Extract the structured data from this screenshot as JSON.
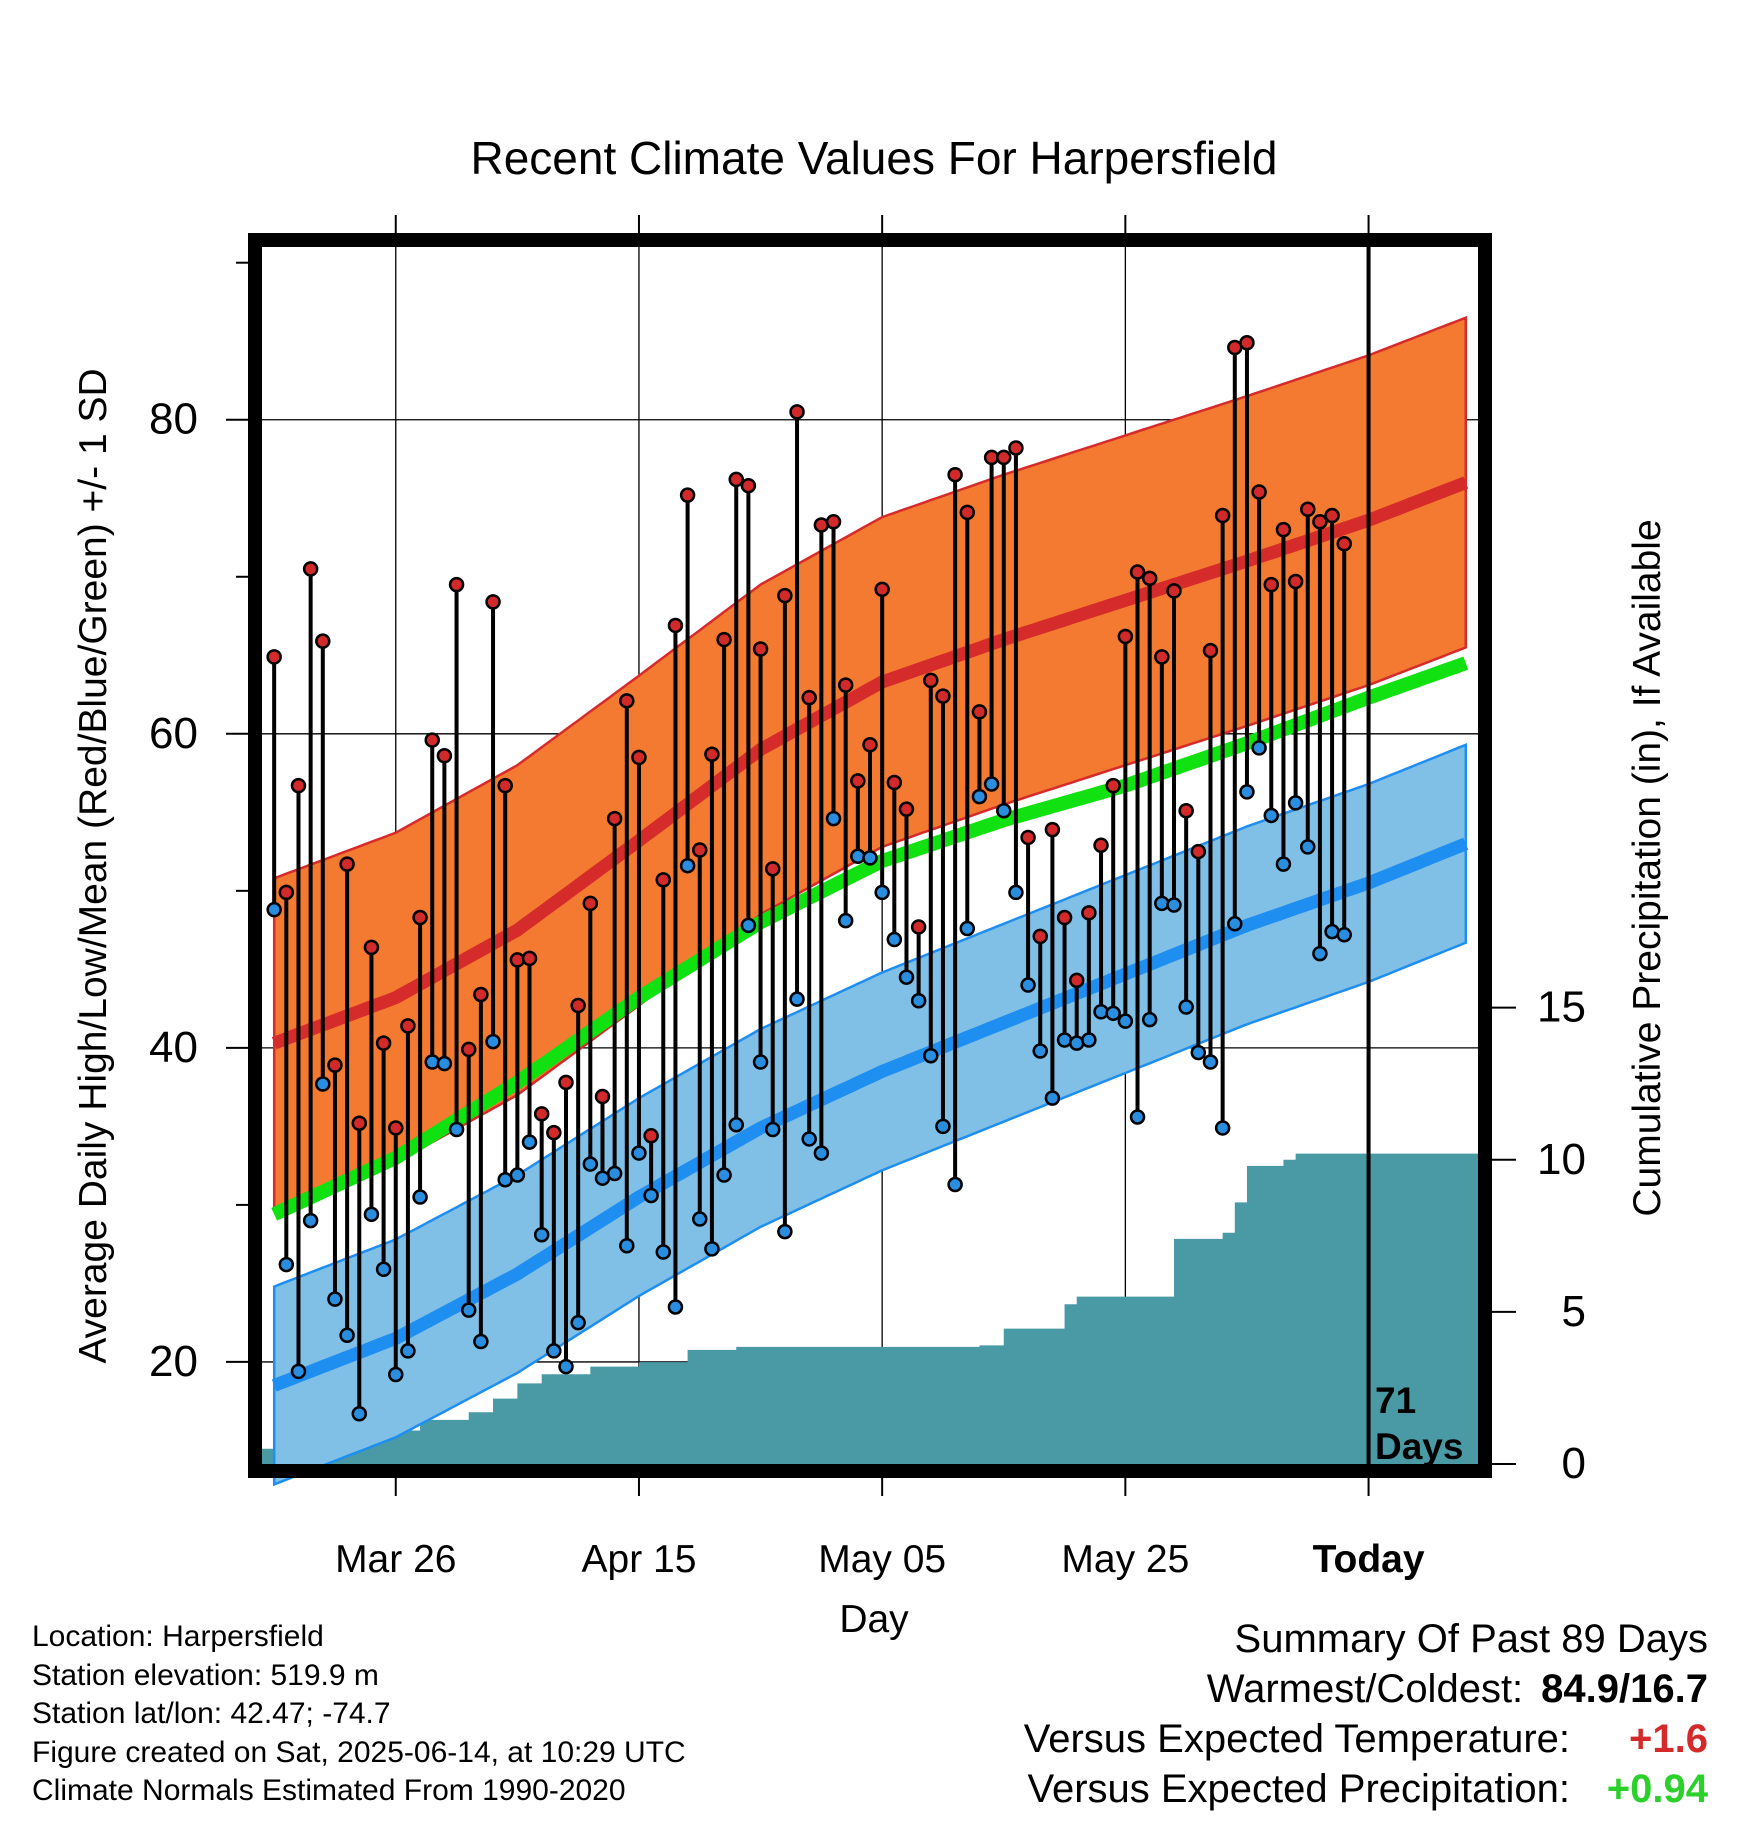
{
  "title": "Recent Climate Values For Harpersfield",
  "ylabel_left": "Average Daily High/Low/Mean (Red/Blue/Green) +/- 1 SD",
  "ylabel_right": "Cumulative Precipitation (in), If Available",
  "xlabel": "Day",
  "days_marker": {
    "number": "71",
    "unit": "Days"
  },
  "meta": {
    "location": "Location: Harpersfield",
    "elevation": "Station elevation: 519.9 m",
    "latlon": "Station lat/lon: 42.47; -74.7",
    "created": "Figure created on Sat, 2025-06-14, at 10:29 UTC",
    "normals": "Climate Normals Estimated From 1990-2020"
  },
  "summary": {
    "heading": "Summary Of Past 89 Days",
    "warmest_coldest_label": "Warmest/Coldest:",
    "warmest_coldest_value": "84.9/16.7",
    "temp_label": "Versus Expected Temperature:",
    "temp_value": "+1.6",
    "temp_color": "#d42a2a",
    "precip_label": "Versus Expected Precipitation:",
    "precip_value": "+0.94",
    "precip_color": "#2bd02b"
  },
  "colors": {
    "high_band": "#f37a30",
    "high_mean": "#d62b2b",
    "low_band": "#80bfe6",
    "low_mean": "#1e8ef0",
    "daily_mean": "#11e011",
    "precip_fill": "#4a9aa5",
    "high_point": "#d22a2a",
    "low_point": "#2a8ee0"
  },
  "chart_data": {
    "type": "line",
    "title": "Recent Climate Values For Harpersfield",
    "xlabel": "Day",
    "ylabel": "Average Daily High/Low/Mean (Red/Blue/Green) +/- 1 SD",
    "y2label": "Cumulative Precipitation (in), If Available",
    "x_tick_labels": [
      "Mar 26",
      "Apr 15",
      "May 05",
      "May 25",
      "Today"
    ],
    "x_tick_days": [
      10,
      30,
      50,
      70,
      90
    ],
    "x_range_days": [
      -1,
      99
    ],
    "today_day": 90,
    "ylim": [
      13.5,
      91
    ],
    "y_ticks": [
      20,
      40,
      60,
      80
    ],
    "y2lim": [
      0,
      40
    ],
    "y2_ticks": [
      0,
      5,
      10,
      15
    ],
    "grid": true,
    "normal_high": [
      [
        0,
        40.3
      ],
      [
        10,
        43.2
      ],
      [
        20,
        47.5
      ],
      [
        30,
        53.2
      ],
      [
        40,
        59.0
      ],
      [
        50,
        63.3
      ],
      [
        60,
        66.0
      ],
      [
        70,
        68.5
      ],
      [
        80,
        71.0
      ],
      [
        90,
        73.6
      ],
      [
        98,
        76.0
      ]
    ],
    "high_sd": 10.5,
    "normal_low": [
      [
        0,
        18.5
      ],
      [
        10,
        21.5
      ],
      [
        20,
        25.6
      ],
      [
        30,
        30.5
      ],
      [
        40,
        34.9
      ],
      [
        50,
        38.5
      ],
      [
        60,
        41.6
      ],
      [
        70,
        44.7
      ],
      [
        80,
        47.8
      ],
      [
        90,
        50.5
      ],
      [
        98,
        53.0
      ]
    ],
    "low_sd": 6.3,
    "normal_mean": [
      [
        0,
        29.4
      ],
      [
        10,
        33.0
      ],
      [
        20,
        37.8
      ],
      [
        30,
        43.2
      ],
      [
        40,
        48.0
      ],
      [
        50,
        51.9
      ],
      [
        60,
        54.5
      ],
      [
        70,
        56.7
      ],
      [
        80,
        59.4
      ],
      [
        90,
        62.3
      ],
      [
        98,
        64.5
      ]
    ],
    "daily": {
      "day": [
        0,
        1,
        2,
        3,
        4,
        5,
        6,
        7,
        8,
        9,
        10,
        11,
        12,
        13,
        14,
        15,
        16,
        17,
        18,
        19,
        20,
        21,
        22,
        23,
        24,
        25,
        26,
        27,
        28,
        29,
        30,
        31,
        32,
        33,
        34,
        35,
        36,
        37,
        38,
        39,
        40,
        41,
        42,
        43,
        44,
        45,
        46,
        47,
        48,
        49,
        50,
        51,
        52,
        53,
        54,
        55,
        56,
        57,
        58,
        59,
        60,
        61,
        62,
        63,
        64,
        65,
        66,
        67,
        68,
        69,
        70,
        71,
        72,
        73,
        74,
        75,
        76,
        77,
        78,
        79,
        80,
        81,
        82,
        83,
        84,
        85,
        86,
        87,
        88
      ],
      "high": [
        64.9,
        49.9,
        56.7,
        70.5,
        65.9,
        38.9,
        51.7,
        35.2,
        46.4,
        40.3,
        34.9,
        41.4,
        48.3,
        59.6,
        58.6,
        69.5,
        39.9,
        43.4,
        68.4,
        56.7,
        45.6,
        45.7,
        35.8,
        34.6,
        37.8,
        42.7,
        49.2,
        36.9,
        54.6,
        62.1,
        58.5,
        34.4,
        50.7,
        66.9,
        75.2,
        52.6,
        58.7,
        66.0,
        76.2,
        75.8,
        65.4,
        51.4,
        68.8,
        80.5,
        62.3,
        73.3,
        73.5,
        63.1,
        57.0,
        59.3,
        69.2,
        56.9,
        55.2,
        47.7,
        63.4,
        62.4,
        76.5,
        74.1,
        61.4,
        77.6,
        77.6,
        78.2,
        53.4,
        47.1,
        53.9,
        48.3,
        44.3,
        48.6,
        52.9,
        56.7,
        66.2,
        70.3,
        69.9,
        64.9,
        69.1,
        55.1,
        52.5,
        65.3,
        73.9,
        84.6,
        84.9,
        75.4,
        69.5,
        73.0,
        69.7,
        74.3,
        73.5,
        73.9,
        72.1
      ],
      "low": [
        48.8,
        26.2,
        19.4,
        29.0,
        37.7,
        24.0,
        21.7,
        16.7,
        29.4,
        25.9,
        19.2,
        20.7,
        30.5,
        39.1,
        39.0,
        34.8,
        23.3,
        21.3,
        40.4,
        31.6,
        31.9,
        34.0,
        28.1,
        20.7,
        19.7,
        22.5,
        32.6,
        31.7,
        32.0,
        27.4,
        33.3,
        30.6,
        27.0,
        23.5,
        51.6,
        29.1,
        27.2,
        31.9,
        35.1,
        47.8,
        39.1,
        34.8,
        28.3,
        43.1,
        34.2,
        33.3,
        54.6,
        48.1,
        52.2,
        52.1,
        49.9,
        46.9,
        44.5,
        43.0,
        39.5,
        35.0,
        31.3,
        47.6,
        56.0,
        56.8,
        55.1,
        49.9,
        44.0,
        39.8,
        36.8,
        40.5,
        40.3,
        40.5,
        42.3,
        42.2,
        41.7,
        35.6,
        41.8,
        49.2,
        49.1,
        42.6,
        39.7,
        39.1,
        34.9,
        47.9,
        56.3,
        59.1,
        54.8,
        51.7,
        55.6,
        52.8,
        46.0,
        47.4,
        47.2
      ]
    },
    "cumulative_precip": [
      [
        -1,
        0.5
      ],
      [
        1,
        0.55
      ],
      [
        3,
        0.75
      ],
      [
        5,
        0.9
      ],
      [
        7,
        1.0
      ],
      [
        9,
        1.05
      ],
      [
        11,
        1.1
      ],
      [
        12,
        1.45
      ],
      [
        16,
        1.7
      ],
      [
        18,
        2.15
      ],
      [
        20,
        2.65
      ],
      [
        22,
        2.95
      ],
      [
        26,
        3.2
      ],
      [
        30,
        3.35
      ],
      [
        34,
        3.75
      ],
      [
        38,
        3.85
      ],
      [
        58,
        3.9
      ],
      [
        60,
        4.45
      ],
      [
        65,
        5.25
      ],
      [
        66,
        5.5
      ],
      [
        71,
        5.5
      ],
      [
        74,
        7.4
      ],
      [
        78,
        7.6
      ],
      [
        79,
        8.6
      ],
      [
        80,
        9.8
      ],
      [
        83,
        10.0
      ],
      [
        84,
        10.2
      ],
      [
        99,
        10.2
      ]
    ]
  }
}
